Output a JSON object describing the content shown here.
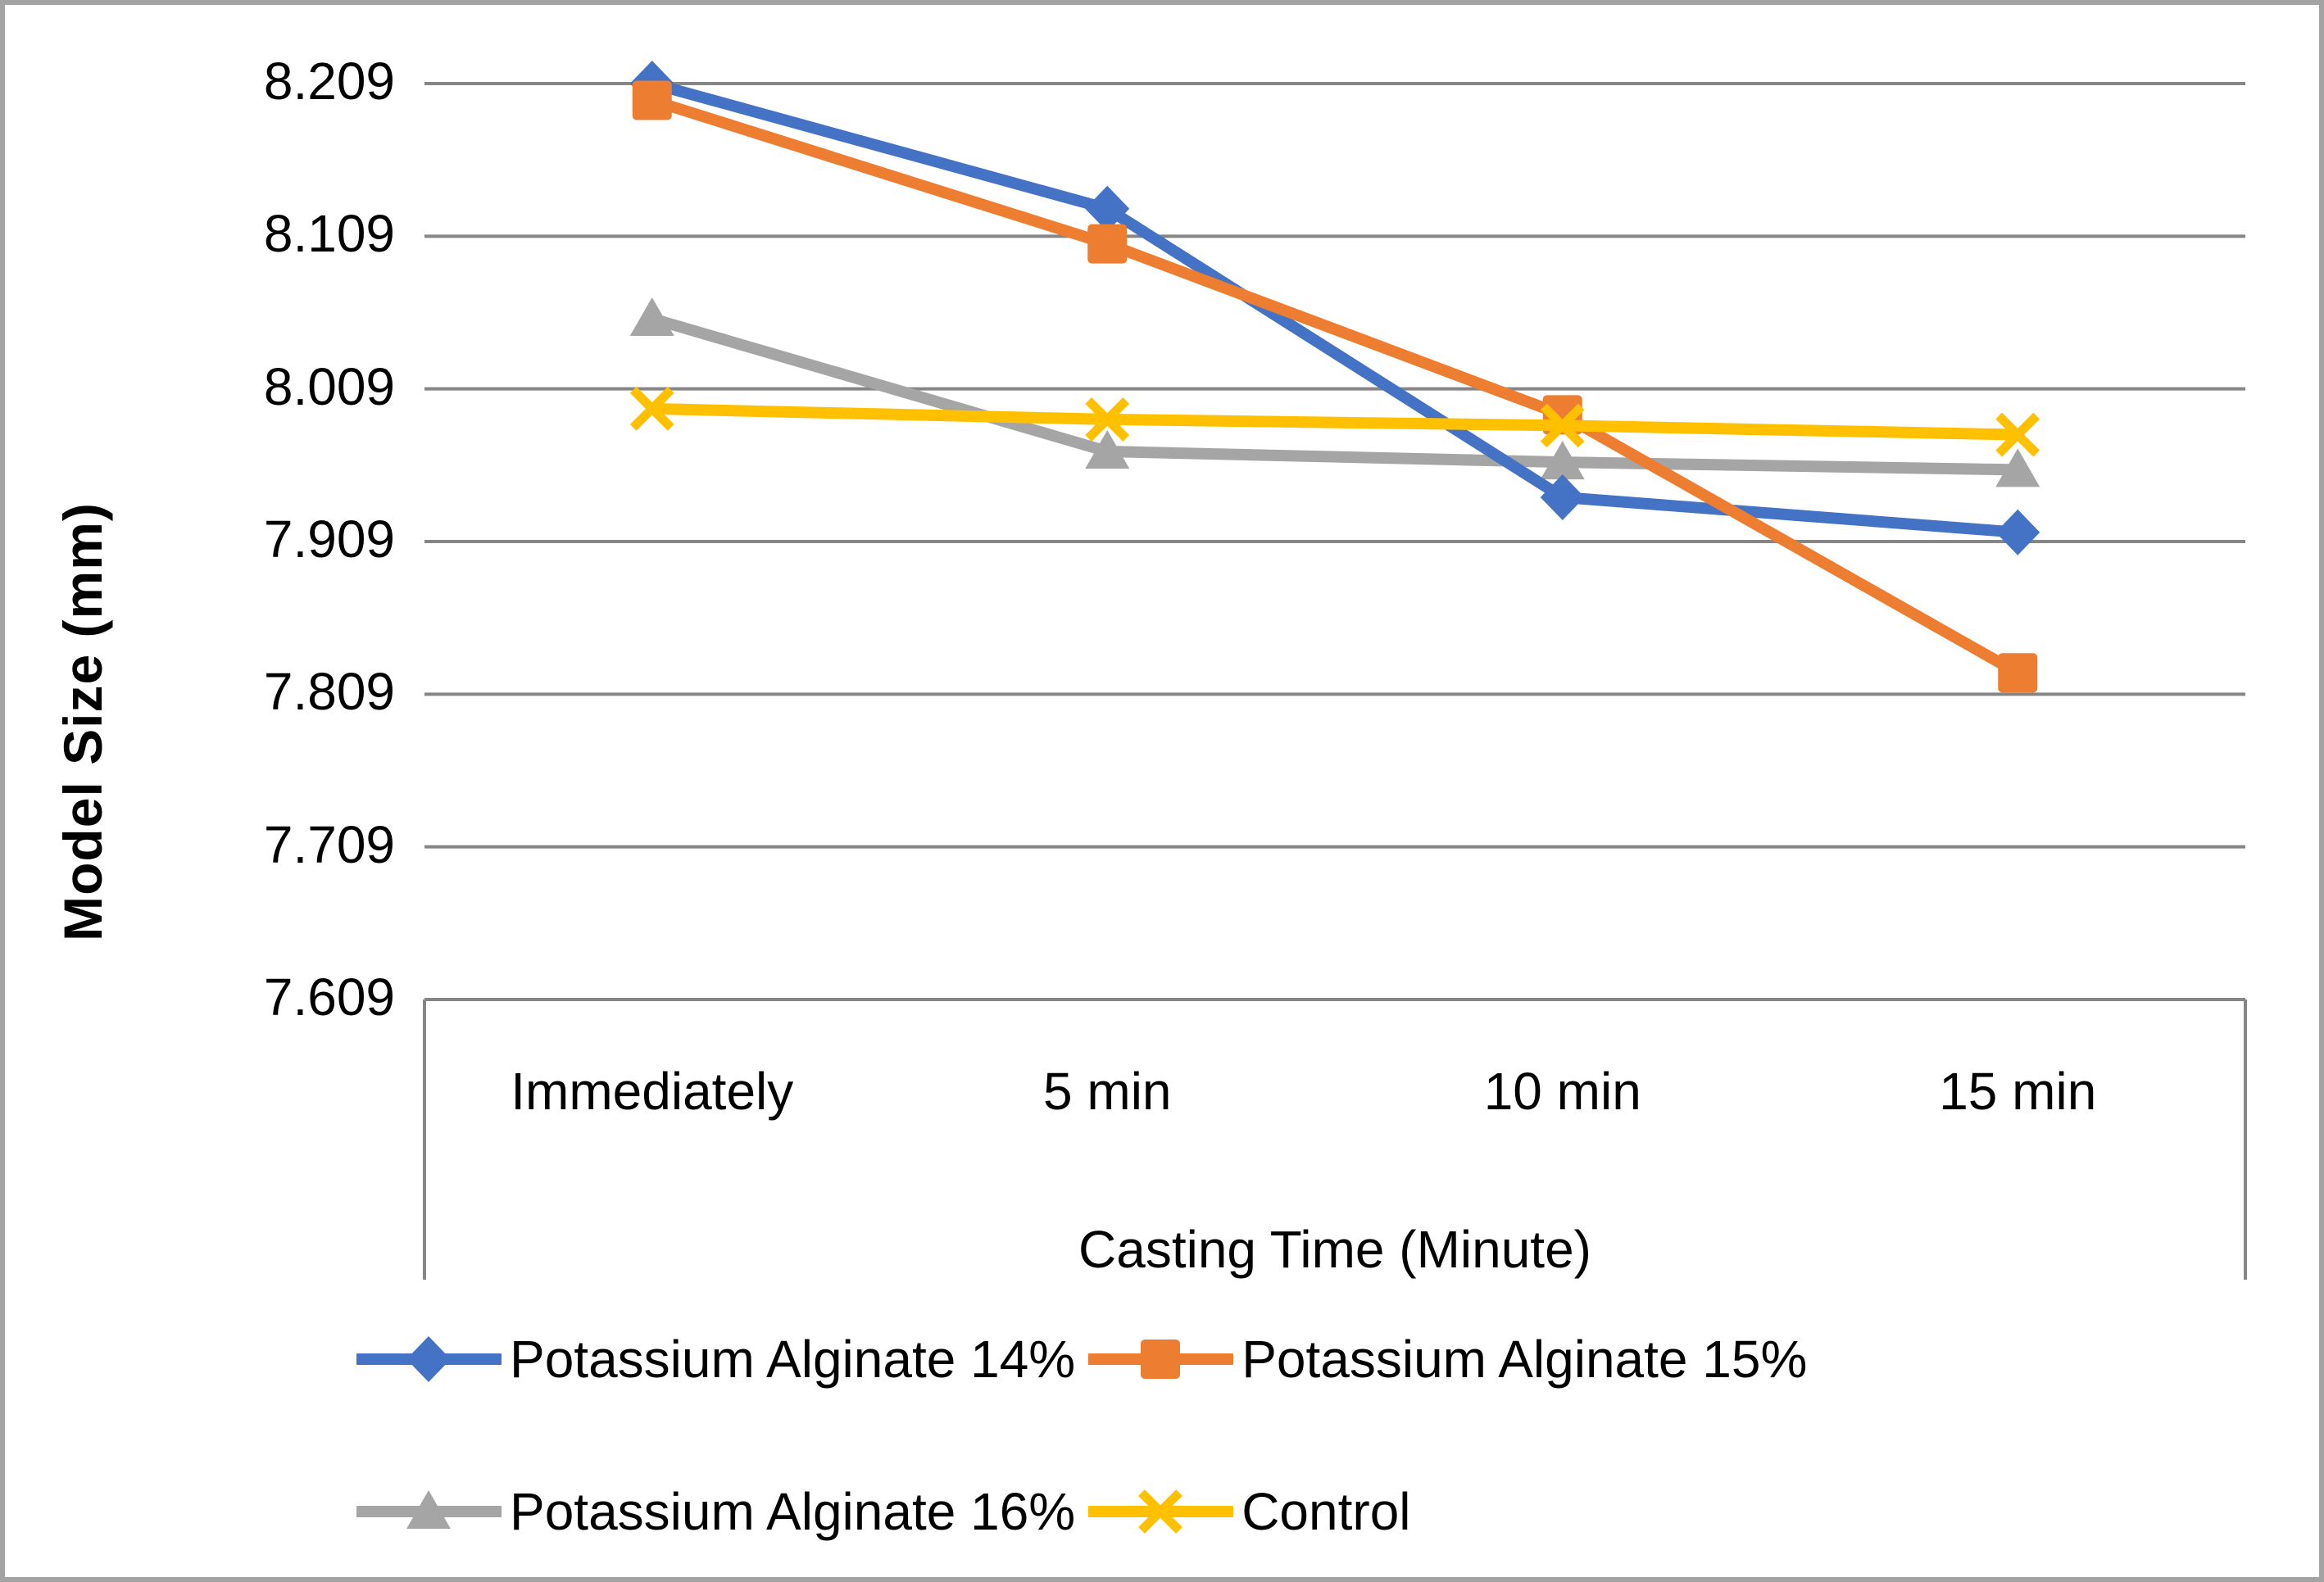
{
  "figure": {
    "background": "#ffffff",
    "frame_border_color": "#a3a3a3",
    "grid_color": "#868686",
    "text_color": "#000000"
  },
  "chart_data": {
    "type": "line",
    "title": "",
    "xlabel": "Casting Time (Minute)",
    "ylabel": "Model Size (mm)",
    "categories": [
      "Immediately",
      "5 min",
      "10 min",
      "15 min"
    ],
    "ytick_labels": [
      "8.209",
      "8.109",
      "8.009",
      "7.909",
      "7.809",
      "7.709",
      "7.609"
    ],
    "yticks": [
      8.209,
      8.109,
      8.009,
      7.909,
      7.809,
      7.709,
      7.609
    ],
    "ylim": [
      7.609,
      8.209
    ],
    "grid": true,
    "legend_position": "bottom",
    "series": [
      {
        "name": "Potassium Alginate 14%",
        "color": "#4472C4",
        "marker": "diamond",
        "values": [
          8.209,
          8.127,
          7.938,
          7.915
        ]
      },
      {
        "name": "Potassium Alginate 15%",
        "color": "#ED7D31",
        "marker": "square",
        "values": [
          8.198,
          8.104,
          7.992,
          7.823
        ]
      },
      {
        "name": "Potassium Alginate 16%",
        "color": "#A5A5A5",
        "marker": "triangle",
        "values": [
          8.055,
          7.968,
          7.961,
          7.956
        ]
      },
      {
        "name": "Control",
        "color": "#FFC000",
        "marker": "x",
        "values": [
          7.996,
          7.989,
          7.985,
          7.979
        ]
      }
    ]
  }
}
